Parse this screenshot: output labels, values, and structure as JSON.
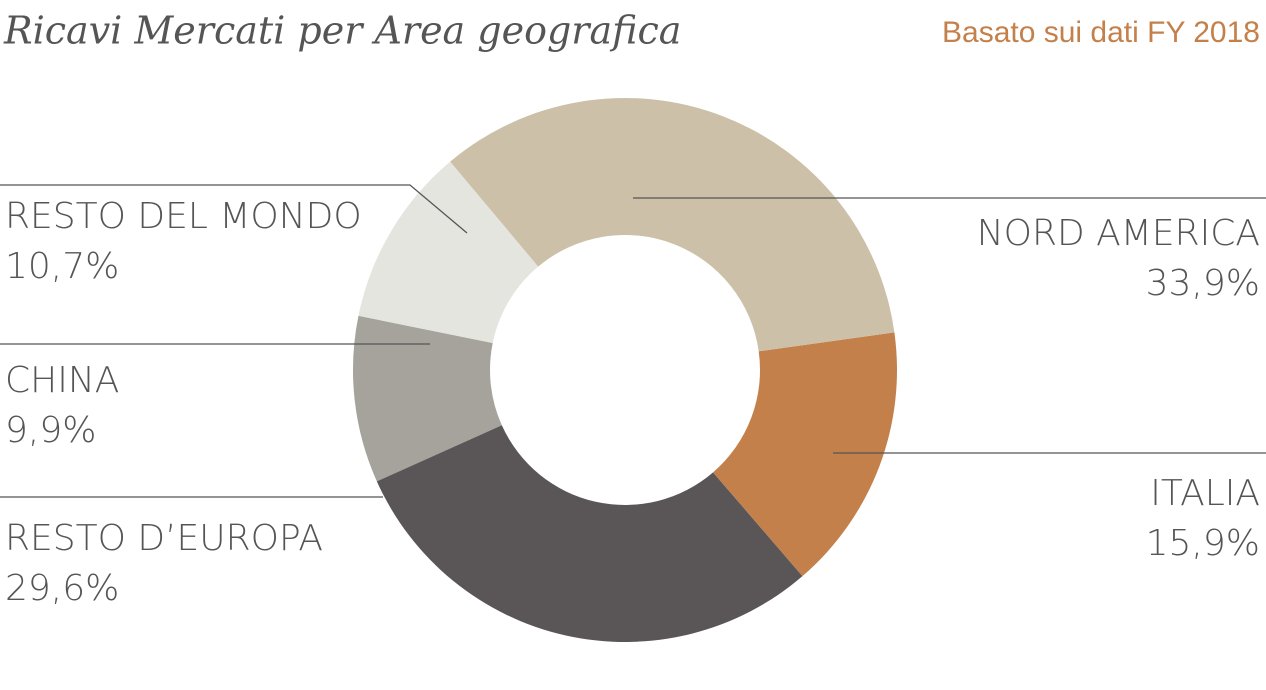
{
  "chart_data": {
    "type": "donut",
    "title": "Ricavi Mercati per Area geografica",
    "subtitle": "Basato sui dati FY 2018",
    "categories": [
      "NORD AMERICA",
      "ITALIA",
      "RESTO D’EUROPA",
      "CHINA",
      "RESTO DEL MONDO"
    ],
    "values": [
      33.9,
      15.9,
      29.6,
      9.9,
      10.7
    ],
    "value_labels": [
      "33,9%",
      "15,9%",
      "29,6%",
      "9,9%",
      "10,7%"
    ],
    "colors": [
      "#ccc1a8",
      "#c4804a",
      "#5a5657",
      "#a5a39c",
      "#e5e5e0"
    ]
  }
}
